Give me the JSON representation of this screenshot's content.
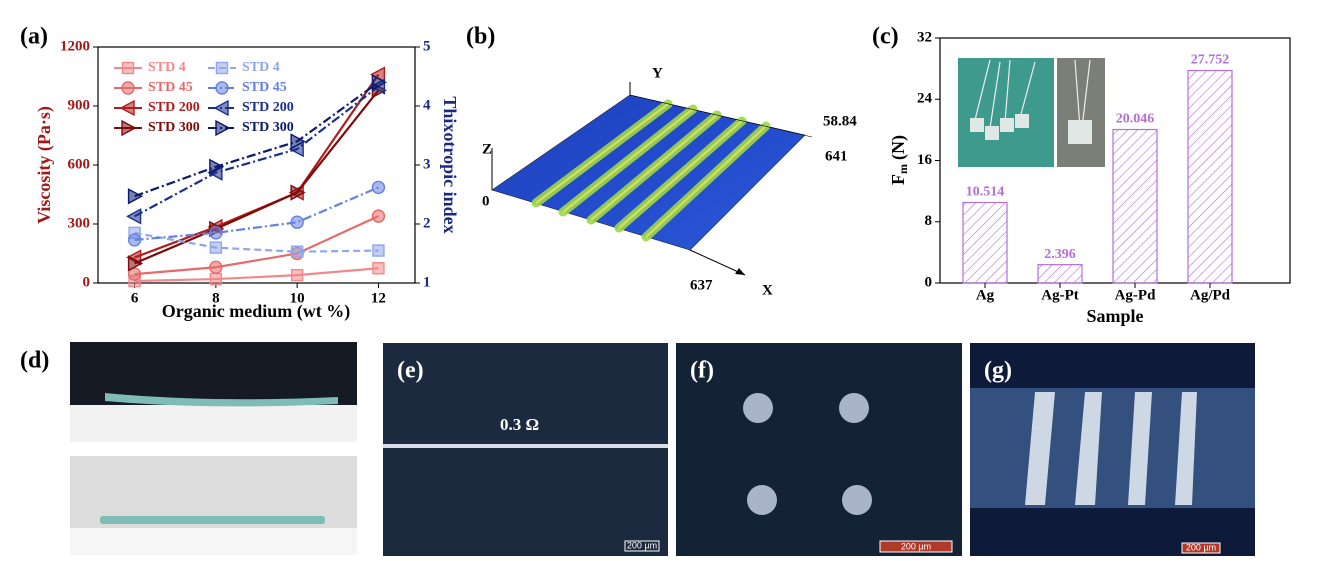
{
  "chart_data": [
    {
      "type": "line",
      "xlabel": "Organic medium (wt %)",
      "ylabel": "Viscosity (Pa·s)",
      "y2label": "Thixotropic index",
      "x": [
        6,
        8,
        10,
        12
      ],
      "xlim": [
        5.1,
        12.9
      ],
      "xticks": [
        6,
        8,
        10,
        12
      ],
      "ylim": [
        0,
        1200
      ],
      "yticks": [
        0,
        300,
        600,
        900,
        1200
      ],
      "y2lim": [
        1,
        5
      ],
      "y2ticks": [
        1,
        2,
        3,
        4,
        5
      ],
      "legend": "upper left",
      "series": [
        {
          "name": "STD 4",
          "color": "#f08a8a",
          "marker": "square",
          "linestyle": "solid",
          "values": [
            10,
            20,
            40,
            75
          ]
        },
        {
          "name": "STD 45",
          "color": "#e66a6a",
          "marker": "circle",
          "linestyle": "solid",
          "values": [
            45,
            80,
            150,
            340
          ]
        },
        {
          "name": "STD 200",
          "color": "#b01e1e",
          "marker": "triangle-left",
          "linestyle": "solid",
          "values": [
            130,
            285,
            460,
            1060
          ]
        },
        {
          "name": "STD 300",
          "color": "#7f0a0a",
          "marker": "triangle-right",
          "linestyle": "solid",
          "values": [
            100,
            275,
            460,
            980
          ]
        },
        {
          "name": "STD 4",
          "color": "#8fa6ea",
          "marker": "square",
          "linestyle": "dashed",
          "axis": "y2",
          "values": [
            1.85,
            1.6,
            1.53,
            1.55
          ]
        },
        {
          "name": "STD 45",
          "color": "#6482e0",
          "marker": "circle",
          "linestyle": "dashdot",
          "axis": "y2",
          "values": [
            1.73,
            1.85,
            2.03,
            2.62
          ]
        },
        {
          "name": "STD 200",
          "color": "#1b2f8e",
          "marker": "triangle-left",
          "linestyle": "dashdot",
          "axis": "y2",
          "values": [
            2.13,
            2.87,
            3.27,
            4.33
          ]
        },
        {
          "name": "STD 300",
          "color": "#0b1a6c",
          "marker": "triangle-right",
          "linestyle": "dashdot",
          "axis": "y2",
          "values": [
            2.47,
            2.97,
            3.4,
            4.4
          ]
        }
      ]
    },
    {
      "type": "bar",
      "xlabel": "Sample",
      "ylabel": [
        "F",
        "m",
        "(N)"
      ],
      "categories": [
        "Ag",
        "Ag-Pt",
        "Ag-Pd",
        "Ag/Pd"
      ],
      "values": [
        10.514,
        2.396,
        20.046,
        27.752
      ],
      "color": "#b46ed8",
      "ylim": [
        0,
        32
      ],
      "yticks": [
        0,
        8,
        16,
        24,
        32
      ]
    }
  ],
  "panels": {
    "a": "(a)",
    "b": {
      "label": "(b)",
      "axis_y": "Y",
      "axis_z": "Z",
      "axis_x": "X",
      "z_zero": "0",
      "z_max": "58.84",
      "y_max": "641",
      "x_max": "637"
    },
    "c": "(c)",
    "d": "(d)",
    "e": {
      "label": "(e)",
      "resistance": "0.3 Ω",
      "scale": "200 µm"
    },
    "f": {
      "label": "(f)",
      "scale": "200 µm"
    },
    "g": {
      "label": "(g)",
      "scale": "200 µm"
    }
  }
}
